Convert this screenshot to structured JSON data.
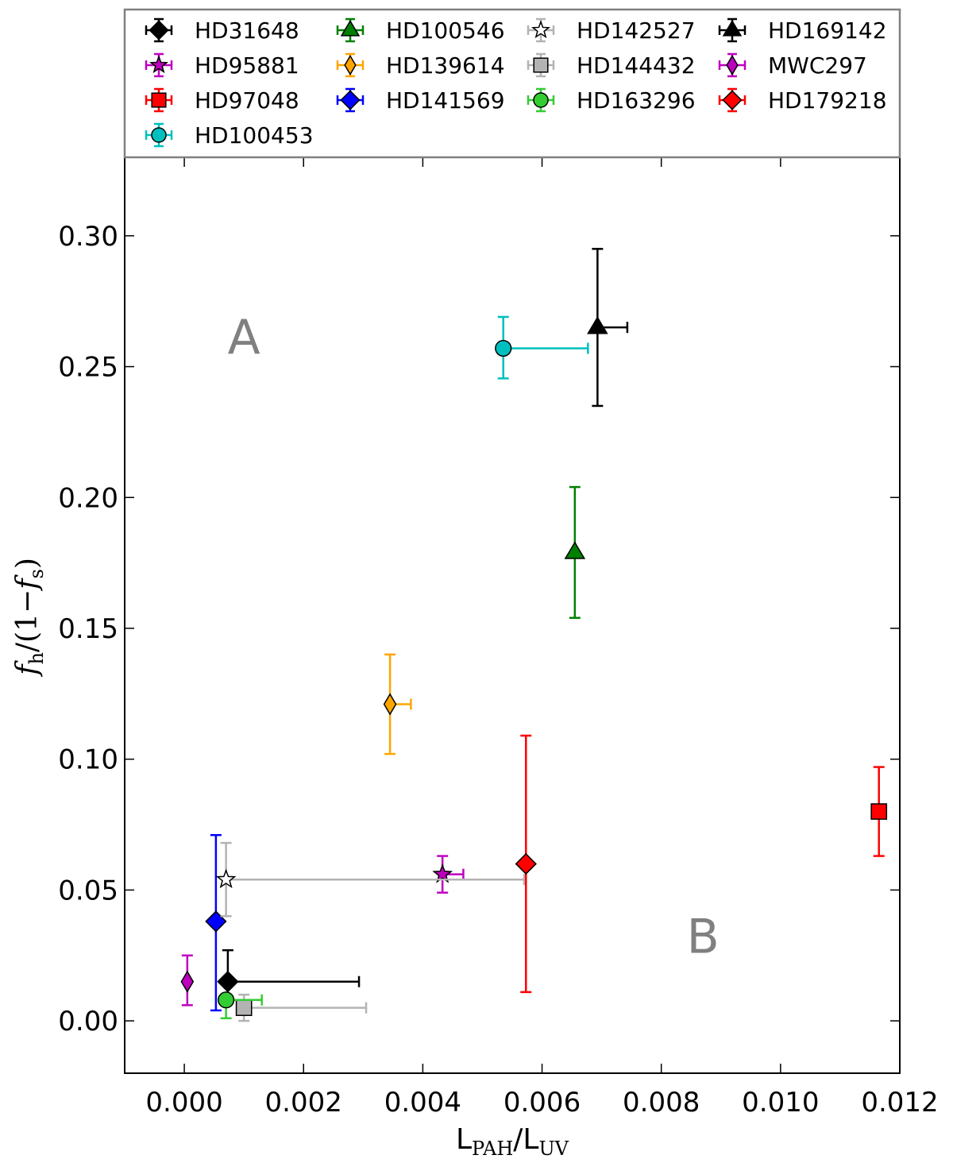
{
  "chart_data": {
    "type": "scatter",
    "title": "",
    "xlabel": "L_PAH/L_UV",
    "xlabel_main": "L",
    "xlabel_sub1": "PAH",
    "xlabel_mid": "/L",
    "xlabel_sub2": "UV",
    "ylabel": "f_h/(1-f_s)",
    "ylabel_parts": {
      "f1": "f",
      "sub1": "h",
      "mid": "/(1−",
      "f2": "f",
      "sub2": "s",
      "end": ")"
    },
    "xlim": [
      -0.001,
      0.012
    ],
    "ylim": [
      -0.02,
      0.33
    ],
    "xticks": [
      0.0,
      0.002,
      0.004,
      0.006,
      0.008,
      0.01,
      0.012
    ],
    "xtick_labels": [
      "0.000",
      "0.002",
      "0.004",
      "0.006",
      "0.008",
      "0.010",
      "0.012"
    ],
    "yticks": [
      0.0,
      0.05,
      0.1,
      0.15,
      0.2,
      0.25,
      0.3
    ],
    "ytick_labels": [
      "0.00",
      "0.05",
      "0.10",
      "0.15",
      "0.20",
      "0.25",
      "0.30"
    ],
    "legend_position": "top (above plot)",
    "region_labels": [
      {
        "text": "A",
        "x": 0.001,
        "y": 0.255
      },
      {
        "text": "B",
        "x": 0.0087,
        "y": 0.026
      }
    ],
    "series": [
      {
        "name": "HD31648",
        "marker": "diamond",
        "color": "#000000",
        "ecolor": "#000000",
        "x": 0.00073,
        "y": 0.015,
        "xerr": [
          0.0,
          0.0022
        ],
        "yerr": [
          0.0,
          0.012
        ]
      },
      {
        "name": "HD95881",
        "marker": "star",
        "color": "#bf00bf",
        "ecolor": "#bf00bf",
        "x": 0.00433,
        "y": 0.056,
        "xerr": [
          0.0,
          0.00035
        ],
        "yerr": [
          0.007,
          0.007
        ]
      },
      {
        "name": "HD97048",
        "marker": "square",
        "color": "#ff0000",
        "ecolor": "#ff0000",
        "x": 0.01165,
        "y": 0.08,
        "xerr": [
          0.0,
          0.0
        ],
        "yerr": [
          0.017,
          0.017
        ]
      },
      {
        "name": "HD100453",
        "marker": "circle",
        "color": "#00bfbf",
        "ecolor": "#00bfbf",
        "x": 0.00535,
        "y": 0.257,
        "xerr": [
          0.0,
          0.00142
        ],
        "yerr": [
          0.0115,
          0.012
        ]
      },
      {
        "name": "HD100546",
        "marker": "triangle",
        "color": "#008000",
        "ecolor": "#008000",
        "x": 0.00655,
        "y": 0.179,
        "xerr": [
          0.0,
          0.0
        ],
        "yerr": [
          0.025,
          0.025
        ]
      },
      {
        "name": "HD139614",
        "marker": "thin_diamond",
        "color": "#ffa500",
        "ecolor": "#ffa500",
        "x": 0.00345,
        "y": 0.121,
        "xerr": [
          0.0,
          0.00035
        ],
        "yerr": [
          0.019,
          0.019
        ]
      },
      {
        "name": "HD141569",
        "marker": "diamond",
        "color": "#0000ff",
        "ecolor": "#0000ff",
        "x": 0.00053,
        "y": 0.038,
        "xerr": [
          0.0,
          0.0
        ],
        "yerr": [
          0.034,
          0.033
        ]
      },
      {
        "name": "HD142527",
        "marker": "star",
        "color": "#ffffff",
        "ecolor": "#b3b3b3",
        "x": 0.0007,
        "y": 0.054,
        "xerr": [
          0.0,
          0.005
        ],
        "yerr": [
          0.014,
          0.014
        ]
      },
      {
        "name": "HD144432",
        "marker": "square",
        "color": "#b3b3b3",
        "ecolor": "#b3b3b3",
        "x": 0.001,
        "y": 0.005,
        "xerr": [
          0.0,
          0.00205
        ],
        "yerr": [
          0.005,
          0.005
        ]
      },
      {
        "name": "HD163296",
        "marker": "circle",
        "color": "#33cc33",
        "ecolor": "#33cc33",
        "x": 0.0007,
        "y": 0.008,
        "xerr": [
          0.0,
          0.0006
        ],
        "yerr": [
          0.007,
          0.0
        ]
      },
      {
        "name": "HD169142",
        "marker": "triangle",
        "color": "#000000",
        "ecolor": "#000000",
        "x": 0.00693,
        "y": 0.265,
        "xerr": [
          0.0,
          0.0005
        ],
        "yerr": [
          0.03,
          0.03
        ]
      },
      {
        "name": "MWC297",
        "marker": "thin_diamond",
        "color": "#bf00bf",
        "ecolor": "#bf00bf",
        "x": 5e-05,
        "y": 0.015,
        "xerr": [
          0.0,
          0.0
        ],
        "yerr": [
          0.009,
          0.01
        ]
      },
      {
        "name": "HD179218",
        "marker": "diamond",
        "color": "#ff0000",
        "ecolor": "#ff0000",
        "x": 0.00573,
        "y": 0.06,
        "xerr": [
          0.0,
          0.0
        ],
        "yerr": [
          0.049,
          0.049
        ]
      }
    ]
  }
}
